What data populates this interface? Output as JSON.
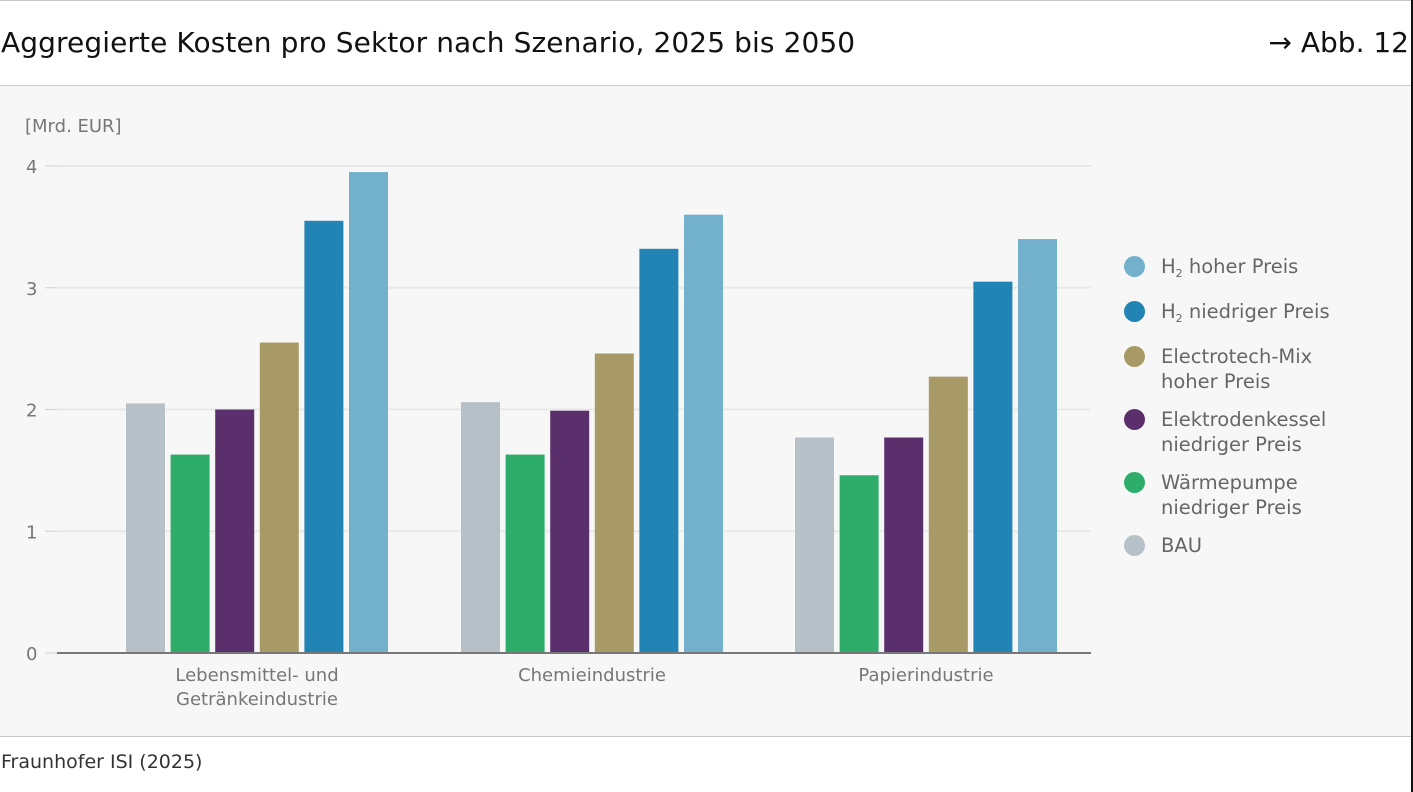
{
  "header": {
    "title": "Aggregierte Kosten pro Sektor nach Szenario, 2025 bis 2050",
    "figure_ref": "→ Abb. 12"
  },
  "footer": {
    "source": "Fraunhofer ISI (2025)"
  },
  "chart_data": {
    "type": "bar",
    "title": "Aggregierte Kosten pro Sektor nach Szenario, 2025 bis 2050",
    "ylabel": "[Mrd. EUR]",
    "xlabel": "",
    "ylim": [
      0,
      4
    ],
    "yticks": [
      0,
      1,
      2,
      3,
      4
    ],
    "grid": true,
    "legend_position": "right",
    "categories": [
      "Lebensmittel- und\nGetränkeindustrie",
      "Chemieindustrie",
      "Papierindustrie"
    ],
    "series": [
      {
        "name": "BAU",
        "color": "#b5c0c7",
        "values": [
          2.05,
          2.06,
          1.77
        ]
      },
      {
        "name": "Wärmepumpe niedriger Preis",
        "color": "#2eac69",
        "values": [
          1.63,
          1.63,
          1.46
        ]
      },
      {
        "name": "Elektrodenkessel niedriger Preis",
        "color": "#5b2f6b",
        "values": [
          2.0,
          1.99,
          1.77
        ]
      },
      {
        "name": "Electrotech-Mix hoher Preis",
        "color": "#a89a66",
        "values": [
          2.55,
          2.46,
          2.27
        ]
      },
      {
        "name": "H2 niedriger Preis",
        "color": "#2283b5",
        "values": [
          3.55,
          3.32,
          3.05
        ]
      },
      {
        "name": "H2 hoher Preis",
        "color": "#73b0cb",
        "values": [
          3.95,
          3.6,
          3.4
        ]
      }
    ]
  },
  "legend": [
    {
      "main": "H",
      "sub": "2",
      "rest": " hoher Preis",
      "color": "#73b0cb"
    },
    {
      "main": "H",
      "sub": "2",
      "rest": " niedriger Preis",
      "color": "#2283b5"
    },
    {
      "main": "Electrotech-Mix\nhoher Preis",
      "sub": "",
      "rest": "",
      "color": "#a89a66"
    },
    {
      "main": "Elektrodenkessel\nniedriger Preis",
      "sub": "",
      "rest": "",
      "color": "#5b2f6b"
    },
    {
      "main": "Wärmepumpe\nniedriger Preis",
      "sub": "",
      "rest": "",
      "color": "#2eac69"
    },
    {
      "main": "BAU",
      "sub": "",
      "rest": "",
      "color": "#b5c0c7"
    }
  ]
}
